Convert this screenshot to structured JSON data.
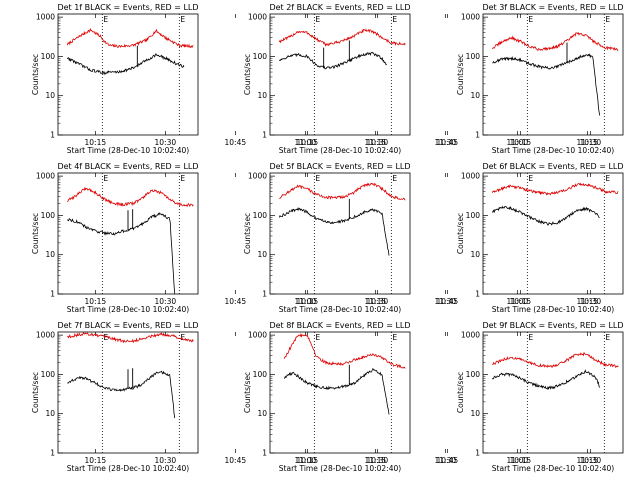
{
  "figure": {
    "xlabel": "Start Time (28-Dec-10 10:02:40)",
    "ylabel": "Counts/sec",
    "x_tick_labels": [
      "10:15",
      "10:30",
      "10:45",
      "11:00",
      "11:15",
      "11:30"
    ],
    "y_tick_labels": [
      "1",
      "10",
      "100",
      "1000"
    ],
    "marker_label": "E",
    "colors": {
      "events": "#000000",
      "lld": "#dd0000",
      "background": "#ffffff"
    }
  },
  "chart_data": [
    {
      "type": "line",
      "title": "Det 1f BLACK = Events, RED = LLD",
      "xlabel": "Start Time (28-Dec-10 10:02:40)",
      "ylabel": "Counts/sec",
      "x_unit": "minutes after 10:00",
      "xlim": [
        7,
        37
      ],
      "ylim": [
        1,
        1200
      ],
      "yscale": "log",
      "grid": false,
      "legend": "none",
      "series": [
        {
          "name": "LLD",
          "color": "#dd0000",
          "x": [
            9,
            12,
            14,
            16,
            17,
            18,
            20,
            23,
            26,
            28,
            30,
            33,
            36
          ],
          "y": [
            200,
            350,
            470,
            330,
            240,
            190,
            180,
            190,
            260,
            450,
            300,
            190,
            180
          ]
        },
        {
          "name": "Events",
          "color": "#000000",
          "x": [
            9,
            10,
            12,
            14,
            16,
            17,
            18,
            20,
            23,
            26,
            28,
            30,
            33,
            34
          ],
          "y": [
            90,
            80,
            60,
            45,
            40,
            38,
            40,
            40,
            50,
            80,
            110,
            90,
            60,
            55
          ]
        }
      ],
      "vertical_markers": {
        "x": [
          16.5,
          33
        ],
        "labels": [
          "E",
          "E"
        ]
      },
      "spikes_x": [
        24
      ]
    },
    {
      "type": "line",
      "title": "Det 2f BLACK = Events, RED = LLD",
      "xlabel": "Start Time (28-Dec-10 10:02:40)",
      "ylabel": "Counts/sec",
      "x_unit": "minutes after 10:00",
      "xlim": [
        7,
        37
      ],
      "ylim": [
        1,
        1200
      ],
      "yscale": "log",
      "grid": false,
      "legend": "none",
      "series": [
        {
          "name": "LLD",
          "color": "#dd0000",
          "x": [
            9,
            11,
            13,
            15,
            17,
            19,
            21,
            23,
            25,
            27,
            29,
            31,
            33,
            36
          ],
          "y": [
            240,
            300,
            430,
            400,
            270,
            200,
            220,
            260,
            330,
            450,
            440,
            300,
            220,
            200
          ]
        },
        {
          "name": "Events",
          "color": "#000000",
          "x": [
            9,
            11,
            13,
            15,
            17,
            19,
            21,
            23,
            25,
            27,
            29,
            31,
            32
          ],
          "y": [
            80,
            100,
            110,
            100,
            60,
            50,
            55,
            70,
            90,
            110,
            120,
            90,
            60
          ]
        }
      ],
      "vertical_markers": {
        "x": [
          16.5,
          33
        ],
        "labels": [
          "E",
          "E"
        ]
      },
      "spikes_x": [
        18.5,
        24
      ]
    },
    {
      "type": "line",
      "title": "Det 3f BLACK = Events, RED = LLD",
      "xlabel": "Start Time (28-Dec-10 10:02:40)",
      "ylabel": "Counts/sec",
      "x_unit": "minutes after 10:00",
      "xlim": [
        7,
        37
      ],
      "ylim": [
        1,
        1200
      ],
      "yscale": "log",
      "grid": false,
      "legend": "none",
      "series": [
        {
          "name": "LLD",
          "color": "#dd0000",
          "x": [
            9,
            11,
            13,
            15,
            17,
            19,
            21,
            23,
            25,
            27,
            29,
            31,
            33,
            36
          ],
          "y": [
            160,
            230,
            300,
            240,
            180,
            150,
            160,
            180,
            250,
            380,
            350,
            230,
            170,
            150
          ]
        },
        {
          "name": "Events",
          "color": "#000000",
          "x": [
            9,
            11,
            13,
            15,
            17,
            19,
            21,
            23,
            25,
            27,
            29,
            30.5,
            32
          ],
          "y": [
            70,
            85,
            90,
            80,
            65,
            55,
            50,
            55,
            70,
            90,
            110,
            100,
            3
          ]
        }
      ],
      "vertical_markers": {
        "x": [
          16.5,
          33
        ],
        "labels": [
          "E",
          "E"
        ]
      },
      "spikes_x": [
        25
      ]
    },
    {
      "type": "line",
      "title": "Det 4f BLACK = Events, RED = LLD",
      "xlabel": "Start Time (28-Dec-10 10:02:40)",
      "ylabel": "Counts/sec",
      "x_unit": "minutes after 10:00",
      "xlim": [
        7,
        37
      ],
      "ylim": [
        1,
        1200
      ],
      "yscale": "log",
      "grid": false,
      "legend": "none",
      "series": [
        {
          "name": "LLD",
          "color": "#dd0000",
          "x": [
            9,
            11,
            13,
            15,
            17,
            19,
            21,
            23,
            25,
            27,
            29,
            31,
            33,
            36
          ],
          "y": [
            230,
            330,
            500,
            380,
            260,
            200,
            190,
            200,
            270,
            430,
            380,
            250,
            190,
            180
          ]
        },
        {
          "name": "Events",
          "color": "#000000",
          "x": [
            9,
            11,
            13,
            15,
            17,
            19,
            21,
            23,
            25,
            27,
            29,
            31,
            32
          ],
          "y": [
            80,
            70,
            50,
            40,
            36,
            34,
            40,
            45,
            60,
            90,
            110,
            80,
            1
          ]
        }
      ],
      "vertical_markers": {
        "x": [
          16.5,
          33
        ],
        "labels": [
          "E",
          "E"
        ]
      },
      "spikes_x": [
        22,
        23
      ]
    },
    {
      "type": "line",
      "title": "Det 5f BLACK = Events, RED = LLD",
      "xlabel": "Start Time (28-Dec-10 10:02:40)",
      "ylabel": "Counts/sec",
      "x_unit": "minutes after 10:00",
      "xlim": [
        7,
        37
      ],
      "ylim": [
        1,
        1200
      ],
      "yscale": "log",
      "grid": false,
      "legend": "none",
      "series": [
        {
          "name": "LLD",
          "color": "#dd0000",
          "x": [
            9,
            11,
            13,
            15,
            17,
            19,
            21,
            23,
            25,
            27,
            29,
            31,
            33,
            36
          ],
          "y": [
            280,
            400,
            550,
            470,
            340,
            290,
            280,
            300,
            380,
            580,
            650,
            480,
            300,
            250
          ]
        },
        {
          "name": "Events",
          "color": "#000000",
          "x": [
            9,
            11,
            13,
            15,
            17,
            19,
            21,
            23,
            25,
            27,
            29,
            31,
            32.5
          ],
          "y": [
            90,
            120,
            150,
            120,
            80,
            70,
            65,
            75,
            90,
            120,
            140,
            110,
            10
          ]
        }
      ],
      "vertical_markers": {
        "x": [
          16.5,
          33
        ],
        "labels": [
          "E",
          "E"
        ]
      },
      "spikes_x": [
        24
      ]
    },
    {
      "type": "line",
      "title": "Det 6f BLACK = Events, RED = LLD",
      "xlabel": "Start Time (28-Dec-10 10:02:40)",
      "ylabel": "Counts/sec",
      "x_unit": "minutes after 10:00",
      "xlim": [
        7,
        37
      ],
      "ylim": [
        1,
        1200
      ],
      "yscale": "log",
      "grid": false,
      "legend": "none",
      "series": [
        {
          "name": "LLD",
          "color": "#dd0000",
          "x": [
            9,
            11,
            13,
            15,
            17,
            19,
            21,
            23,
            25,
            27,
            29,
            31,
            33,
            36
          ],
          "y": [
            380,
            480,
            560,
            500,
            420,
            380,
            360,
            380,
            450,
            600,
            620,
            520,
            410,
            380
          ]
        },
        {
          "name": "Events",
          "color": "#000000",
          "x": [
            9,
            11,
            13,
            15,
            17,
            19,
            21,
            23,
            25,
            27,
            29,
            31,
            32
          ],
          "y": [
            120,
            160,
            150,
            120,
            90,
            70,
            60,
            65,
            90,
            130,
            150,
            120,
            90
          ]
        }
      ],
      "vertical_markers": {
        "x": [
          16.5,
          33
        ],
        "labels": [
          "E",
          "E"
        ]
      },
      "spikes_x": []
    },
    {
      "type": "line",
      "title": "Det 7f BLACK = Events, RED = LLD",
      "xlabel": "Start Time (28-Dec-10 10:02:40)",
      "ylabel": "Counts/sec",
      "x_unit": "minutes after 10:00",
      "xlim": [
        7,
        37
      ],
      "ylim": [
        1,
        1200
      ],
      "yscale": "log",
      "grid": false,
      "legend": "none",
      "series": [
        {
          "name": "LLD",
          "color": "#dd0000",
          "x": [
            9,
            11,
            13,
            15,
            17,
            19,
            21,
            23,
            25,
            27,
            29,
            31,
            33,
            36
          ],
          "y": [
            900,
            1000,
            1100,
            1000,
            900,
            800,
            700,
            700,
            800,
            950,
            1050,
            1000,
            850,
            700
          ]
        },
        {
          "name": "Events",
          "color": "#000000",
          "x": [
            9,
            11,
            13,
            15,
            17,
            19,
            21,
            23,
            25,
            27,
            29,
            31,
            32
          ],
          "y": [
            60,
            80,
            80,
            60,
            45,
            40,
            40,
            45,
            55,
            90,
            120,
            90,
            8
          ]
        }
      ],
      "vertical_markers": {
        "x": [
          16.5,
          33
        ],
        "labels": [
          "E",
          "E"
        ]
      },
      "spikes_x": [
        22,
        23
      ]
    },
    {
      "type": "line",
      "title": "Det 8f BLACK = Events, RED = LLD",
      "xlabel": "Start Time (28-Dec-10 10:02:40)",
      "ylabel": "Counts/sec",
      "x_unit": "minutes after 10:00",
      "xlim": [
        7,
        37
      ],
      "ylim": [
        1,
        1200
      ],
      "yscale": "log",
      "grid": false,
      "legend": "none",
      "series": [
        {
          "name": "LLD",
          "color": "#dd0000",
          "x": [
            10,
            11,
            13,
            15,
            17,
            19,
            21,
            23,
            25,
            27,
            29,
            31,
            33,
            36
          ],
          "y": [
            250,
            400,
            1000,
            1000,
            280,
            200,
            180,
            190,
            230,
            280,
            330,
            270,
            180,
            150
          ]
        },
        {
          "name": "Events",
          "color": "#000000",
          "x": [
            10,
            11,
            12,
            15,
            17,
            19,
            21,
            23,
            25,
            27,
            29,
            31,
            32.5
          ],
          "y": [
            80,
            100,
            110,
            60,
            50,
            45,
            45,
            50,
            60,
            90,
            130,
            100,
            10
          ]
        }
      ],
      "vertical_markers": {
        "x": [
          16.5,
          33
        ],
        "labels": [
          "E",
          "E"
        ]
      },
      "spikes_x": [
        24
      ]
    },
    {
      "type": "line",
      "title": "Det 9f BLACK = Events, RED = LLD",
      "xlabel": "Start Time (28-Dec-10 10:02:40)",
      "ylabel": "Counts/sec",
      "x_unit": "minutes after 10:00",
      "xlim": [
        7,
        37
      ],
      "ylim": [
        1,
        1200
      ],
      "yscale": "log",
      "grid": false,
      "legend": "none",
      "series": [
        {
          "name": "LLD",
          "color": "#dd0000",
          "x": [
            9,
            11,
            13,
            15,
            17,
            19,
            21,
            23,
            25,
            27,
            29,
            31,
            33,
            36
          ],
          "y": [
            180,
            230,
            270,
            240,
            200,
            170,
            160,
            170,
            230,
            330,
            330,
            240,
            180,
            160
          ]
        },
        {
          "name": "Events",
          "color": "#000000",
          "x": [
            9,
            11,
            13,
            15,
            17,
            19,
            21,
            23,
            25,
            27,
            29,
            31,
            32
          ],
          "y": [
            80,
            100,
            100,
            80,
            60,
            50,
            45,
            50,
            65,
            90,
            120,
            90,
            50
          ]
        }
      ],
      "vertical_markers": {
        "x": [
          16.5,
          33
        ],
        "labels": [
          "E",
          "E"
        ]
      },
      "spikes_x": []
    }
  ]
}
